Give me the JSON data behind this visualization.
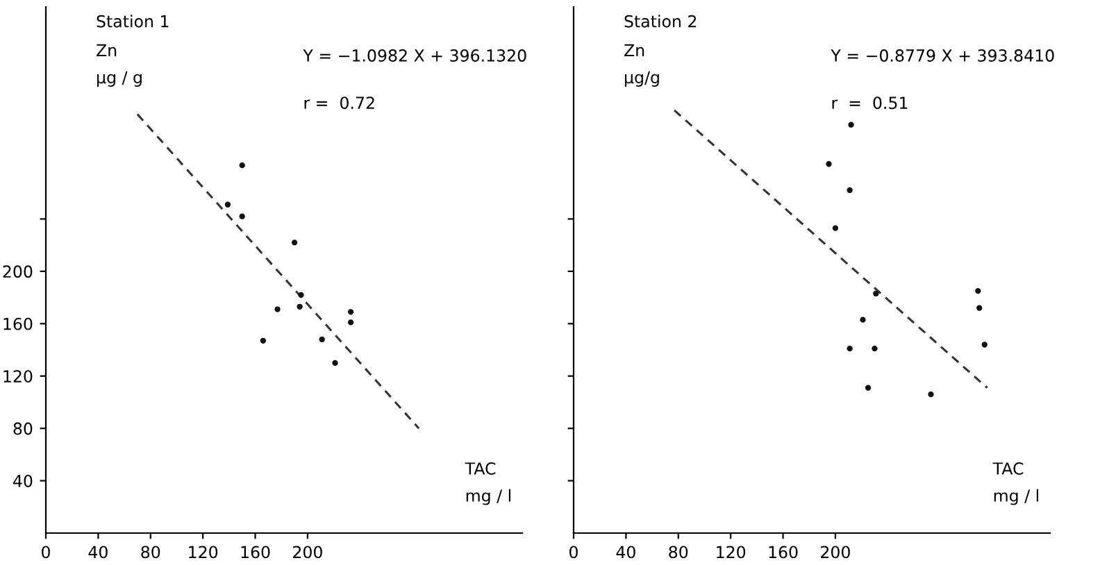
{
  "chart_data": [
    {
      "type": "scatter",
      "title": "Station 1",
      "ylabel": "Zn\nμg / g",
      "xlabel": "TAC\nmg / l",
      "annotations": [
        "Y = −1.0982 X + 396.1320",
        "r =  0.72"
      ],
      "xlim": [
        0,
        364
      ],
      "ylim": [
        0,
        402
      ],
      "xticks": [
        0,
        40,
        80,
        120,
        160,
        200
      ],
      "yticks": [
        40,
        80,
        120,
        160,
        200,
        {
          "value": 240,
          "label": null
        }
      ],
      "grid": false,
      "legend": false,
      "series": [
        {
          "type": "scatter",
          "color": "#111111",
          "marker": "circle",
          "x": [
            150,
            139,
            150,
            190,
            195,
            194,
            177,
            166,
            211,
            221,
            233,
            233
          ],
          "values": [
            281,
            251,
            242,
            222,
            182,
            173,
            171,
            147,
            148,
            130,
            169,
            161
          ]
        },
        {
          "type": "line",
          "color": "#333333",
          "marker": "none",
          "line_style": "dashed",
          "x": [
            70,
            285
          ],
          "values": [
            320,
            80
          ]
        }
      ]
    },
    {
      "type": "scatter",
      "title": "Station 2",
      "ylabel": "Zn\nμg/g",
      "xlabel": "TAC\nmg / l",
      "annotations": [
        "Y = −0.8779 X + 393.8410",
        "r  =  0.51"
      ],
      "xlim": [
        0,
        364
      ],
      "ylim": [
        0,
        402
      ],
      "xticks": [
        0,
        40,
        80,
        120,
        160,
        200
      ],
      "yticks": [
        {
          "value": 40,
          "label": null
        },
        {
          "value": 80,
          "label": null
        },
        {
          "value": 120,
          "label": null
        },
        {
          "value": 160,
          "label": null
        },
        {
          "value": 200,
          "label": null
        },
        {
          "value": 240,
          "label": null
        }
      ],
      "tick_labels": "x",
      "grid": false,
      "legend": false,
      "series": [
        {
          "type": "scatter",
          "color": "#111111",
          "marker": "circle",
          "x": [
            212,
            195,
            211,
            200,
            231,
            221,
            211,
            230,
            225,
            273,
            309,
            310,
            314
          ],
          "values": [
            312,
            282,
            262,
            233,
            183,
            163,
            141,
            141,
            111,
            106,
            185,
            172,
            144
          ]
        },
        {
          "type": "line",
          "color": "#333333",
          "marker": "none",
          "line_style": "dashed",
          "x": [
            77,
            316
          ],
          "values": [
            323,
            111
          ]
        }
      ]
    }
  ]
}
